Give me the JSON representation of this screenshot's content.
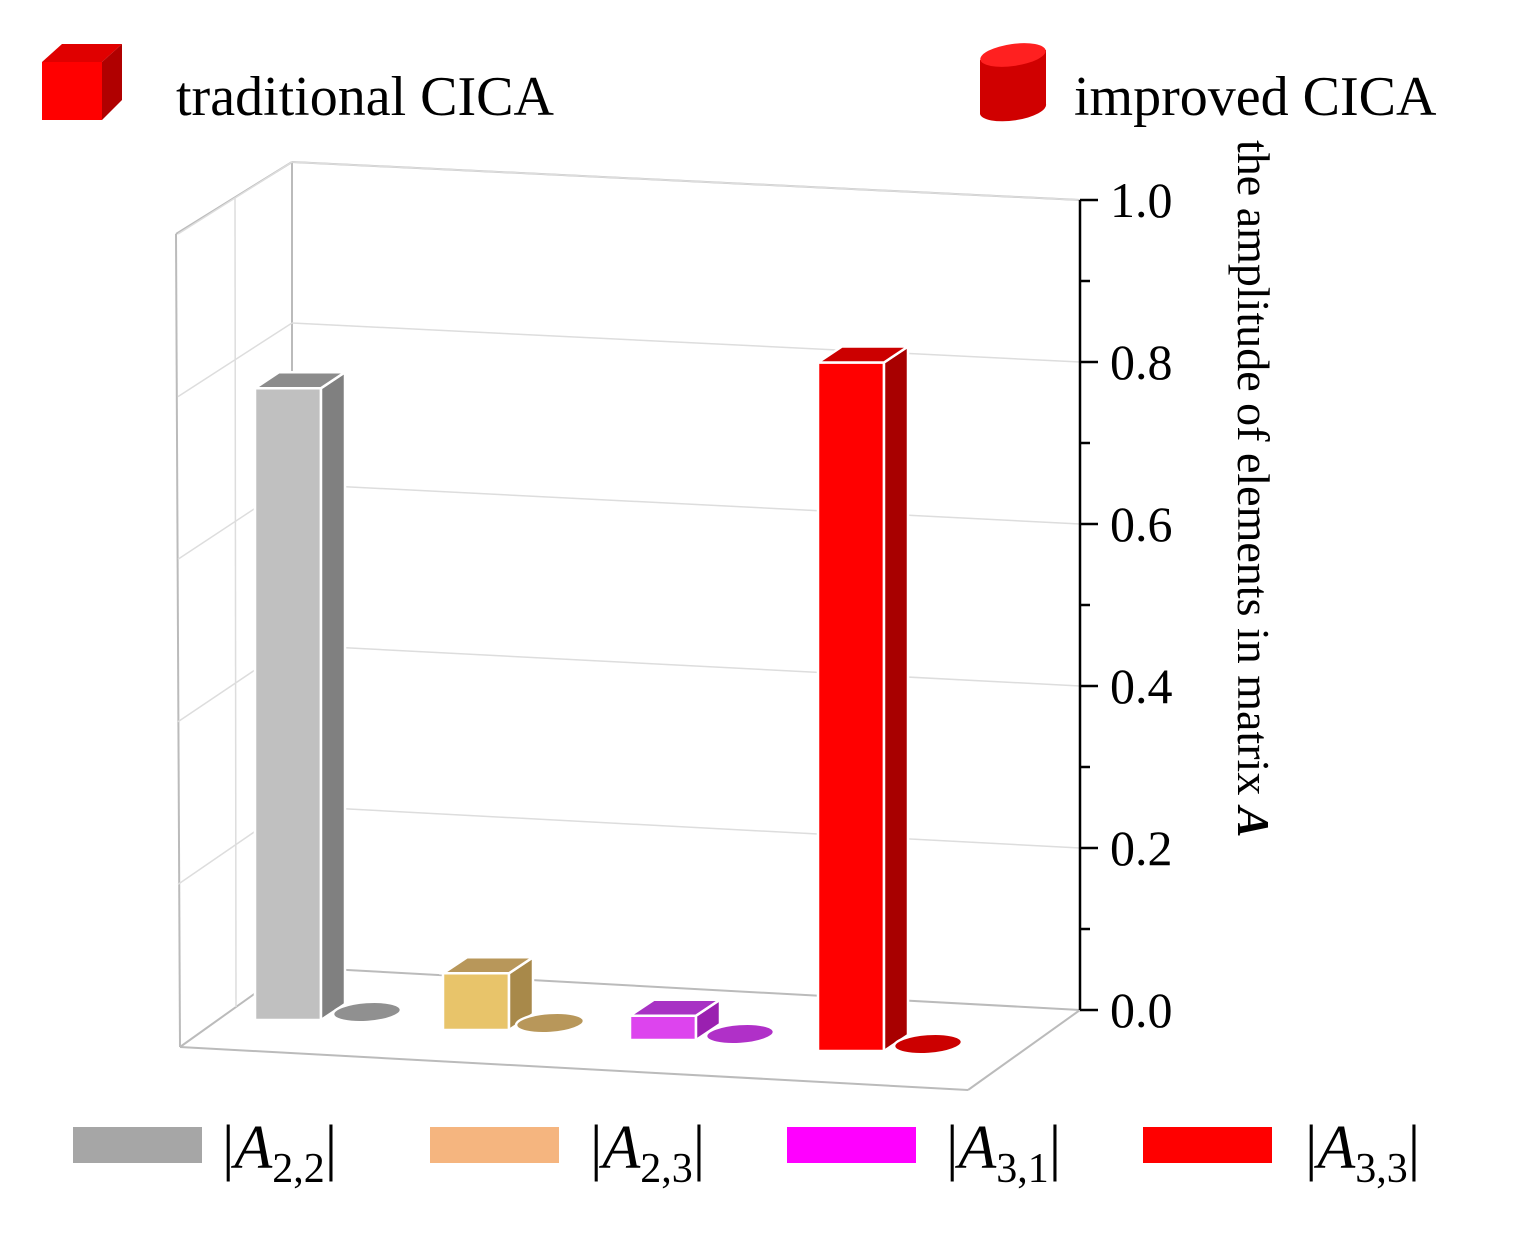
{
  "chart_data": {
    "type": "bar",
    "title": "",
    "ylabel_main": "the amplitude of elements in matrix",
    "ylabel_symbol": "A",
    "ylim": [
      0,
      1.0
    ],
    "yticks": [
      "0.0",
      "0.2",
      "0.4",
      "0.6",
      "0.8",
      "1.0"
    ],
    "grid": true,
    "methods": [
      {
        "key": "traditional",
        "name": "traditional CICA",
        "shape": "cuboid"
      },
      {
        "key": "improved",
        "name": "improved CICA",
        "shape": "cylinder"
      }
    ],
    "categories": [
      {
        "base": "A",
        "sub": "2,2",
        "color": "#a6a6a6"
      },
      {
        "base": "A",
        "sub": "2,3",
        "color": "#f5b57f"
      },
      {
        "base": "A",
        "sub": "3,1",
        "color": "#ff00ff"
      },
      {
        "base": "A",
        "sub": "3,3",
        "color": "#ff0000"
      }
    ],
    "series": [
      {
        "name": "traditional CICA",
        "values": [
          0.78,
          0.07,
          0.03,
          0.85
        ]
      },
      {
        "name": "improved CICA",
        "values": [
          0.0,
          0.0,
          0.0,
          0.0
        ]
      }
    ]
  },
  "colors": {
    "cuboid_front": [
      "#c0c0c0",
      "#e8c46a",
      "#dd44ee",
      "#ff0000"
    ],
    "cuboid_side": [
      "#808080",
      "#a8894a",
      "#9a20b0",
      "#a80000"
    ],
    "cuboid_top": [
      "#8c8c8c",
      "#b8975a",
      "#a832c4",
      "#cc0000"
    ],
    "cylinder_fill": [
      "#909090",
      "#b8975a",
      "#b030c8",
      "#cc0000"
    ],
    "legend_icon_red": "#ff0000"
  }
}
